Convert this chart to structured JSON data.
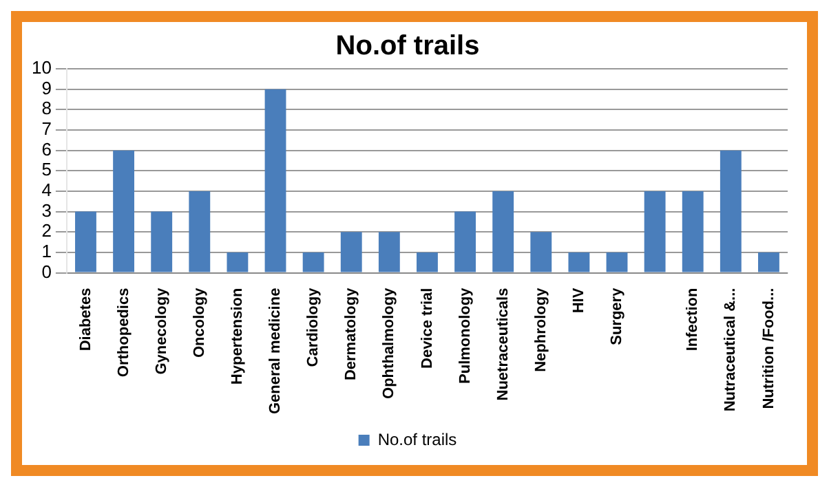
{
  "chart_data": {
    "type": "bar",
    "title": "No.of trails",
    "categories": [
      "Diabetes",
      "Orthopedics",
      "Gynecology",
      "Oncology",
      "Hypertension",
      "General medicine",
      "Cardiology",
      "Dermatology",
      "Ophthalmology",
      "Device trial",
      "Pulmonology",
      "Nuetraceuticals",
      "Nephrology",
      "HIV",
      "Surgery",
      null,
      "Infection",
      "Nutraceutical &...",
      "Nutrition /Food..."
    ],
    "series": [
      {
        "name": "No.of trails",
        "color": "#4a7ebb",
        "values": [
          3,
          6,
          3,
          4,
          1,
          9,
          1,
          2,
          2,
          1,
          3,
          4,
          2,
          1,
          1,
          4,
          4,
          6,
          1
        ]
      }
    ],
    "ylim": [
      0,
      10
    ],
    "yticks": [
      0,
      1,
      2,
      3,
      4,
      5,
      6,
      7,
      8,
      9,
      10
    ],
    "grid": "y",
    "legend": "bottom"
  }
}
